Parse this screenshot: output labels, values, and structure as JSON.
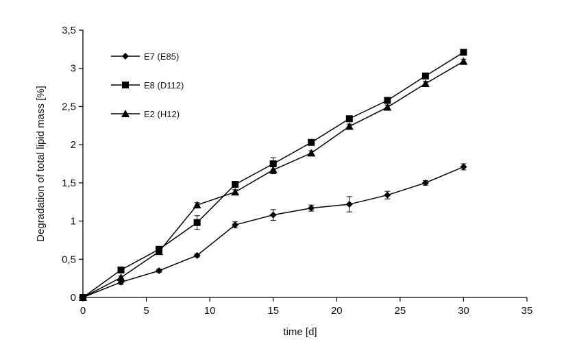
{
  "chart_data": {
    "type": "line",
    "xlabel": "time [d]",
    "ylabel": "Degradation of total lipid mass [%]",
    "xlim": [
      0,
      35
    ],
    "ylim": [
      0,
      3.5
    ],
    "x_ticks": [
      0,
      5,
      10,
      15,
      20,
      25,
      30,
      35
    ],
    "x_tick_labels": [
      "0",
      "5",
      "10",
      "15",
      "20",
      "25",
      "30",
      "35"
    ],
    "y_ticks": [
      0,
      0.5,
      1,
      1.5,
      2,
      2.5,
      3,
      3.5
    ],
    "y_tick_labels": [
      "0",
      "0,5",
      "1",
      "1,5",
      "2",
      "2,5",
      "3",
      "3,5"
    ],
    "grid": false,
    "legend_position": "top-left",
    "series": [
      {
        "name": "E7 (E85)",
        "marker": "diamond",
        "color": "#000000",
        "x": [
          0,
          3,
          6,
          9,
          12,
          15,
          18,
          21,
          24,
          27,
          30
        ],
        "y": [
          0,
          0.2,
          0.35,
          0.55,
          0.95,
          1.08,
          1.17,
          1.22,
          1.34,
          1.5,
          1.71
        ],
        "error": [
          0,
          0.03,
          0.02,
          0.02,
          0.04,
          0.07,
          0.04,
          0.1,
          0.05,
          0.03,
          0.04
        ]
      },
      {
        "name": "E8 (D112)",
        "marker": "square",
        "color": "#000000",
        "x": [
          0,
          3,
          6,
          9,
          12,
          15,
          18,
          21,
          24,
          27,
          30
        ],
        "y": [
          0,
          0.36,
          0.63,
          0.98,
          1.48,
          1.75,
          2.03,
          2.34,
          2.58,
          2.9,
          3.21
        ],
        "error": [
          0,
          0.02,
          0.03,
          0.09,
          0.03,
          0.08,
          0.03,
          0.03,
          0.03,
          0.03,
          0.03
        ]
      },
      {
        "name": "E2 (H12)",
        "marker": "triangle",
        "color": "#000000",
        "x": [
          0,
          3,
          6,
          9,
          12,
          15,
          18,
          21,
          24,
          27,
          30
        ],
        "y": [
          0,
          0.26,
          0.6,
          1.21,
          1.38,
          1.67,
          1.89,
          2.24,
          2.49,
          2.8,
          3.09
        ],
        "error": [
          0,
          0.02,
          0.02,
          0.03,
          0.03,
          0.05,
          0.03,
          0.03,
          0.03,
          0.03,
          0.03
        ]
      }
    ]
  }
}
